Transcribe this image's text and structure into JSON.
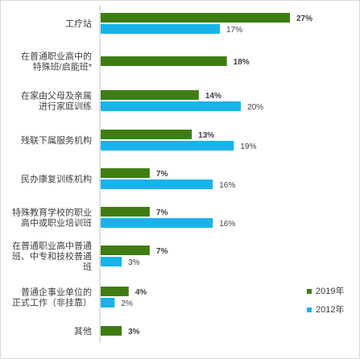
{
  "chart_data": {
    "type": "bar",
    "orientation": "horizontal",
    "title": "",
    "xlabel": "",
    "ylabel": "",
    "xlim": [
      0,
      30
    ],
    "grid": false,
    "legend_position": "bottom-right",
    "categories": [
      [
        "工疗站"
      ],
      [
        "在普通职业高中的",
        "特殊班/启能班*"
      ],
      [
        "在家由父母及亲属",
        "进行家庭训练"
      ],
      [
        "残联下属服务机构"
      ],
      [
        "民办康复训练机构"
      ],
      [
        "特殊教育学校的职业",
        "高中或职业培训班"
      ],
      [
        "在普通职业高中普通",
        "班、中专和技校普通",
        "班"
      ],
      [
        "普通企事业单位的",
        "正式工作（非挂靠）"
      ],
      [
        "其他"
      ]
    ],
    "series": [
      {
        "name": "2019年",
        "color": "#3f7d13",
        "values": [
          27,
          18,
          14,
          13,
          7,
          7,
          7,
          4,
          3
        ],
        "labels": [
          "27%",
          "18%",
          "14%",
          "13%",
          "7%",
          "7%",
          "7%",
          "4%",
          "3%"
        ]
      },
      {
        "name": "2012年",
        "color": "#19b3ea",
        "values": [
          17,
          null,
          20,
          19,
          16,
          16,
          3,
          2,
          null
        ],
        "labels": [
          "17%",
          "",
          "20%",
          "19%",
          "16%",
          "16%",
          "3%",
          "2%",
          ""
        ]
      }
    ]
  }
}
